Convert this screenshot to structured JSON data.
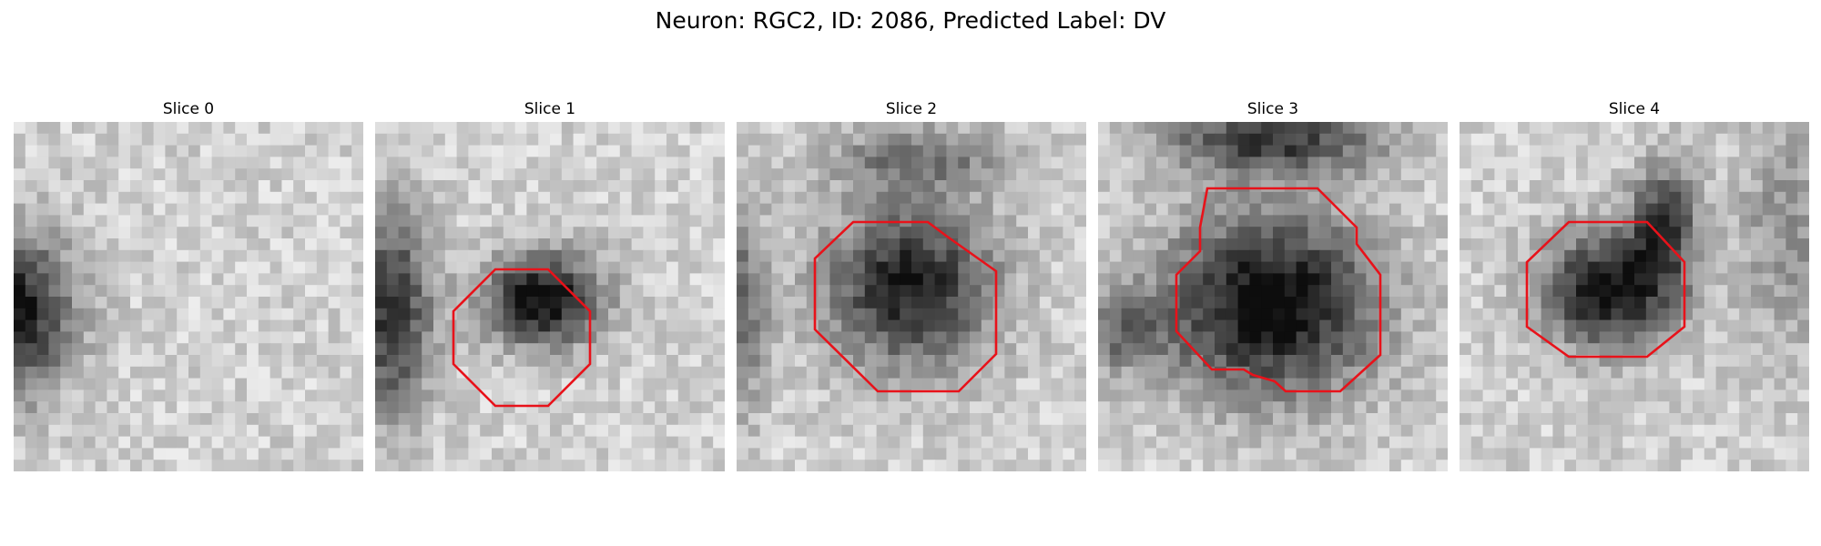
{
  "figure": {
    "title": "Neuron: RGC2, ID: 2086, Predicted Label: DV",
    "contour_color": "#e8121a"
  },
  "panels": [
    {
      "title": "Slice 0",
      "has_contour": false
    },
    {
      "title": "Slice 1",
      "has_contour": true
    },
    {
      "title": "Slice 2",
      "has_contour": true
    },
    {
      "title": "Slice 3",
      "has_contour": true
    },
    {
      "title": "Slice 4",
      "has_contour": true
    }
  ]
}
